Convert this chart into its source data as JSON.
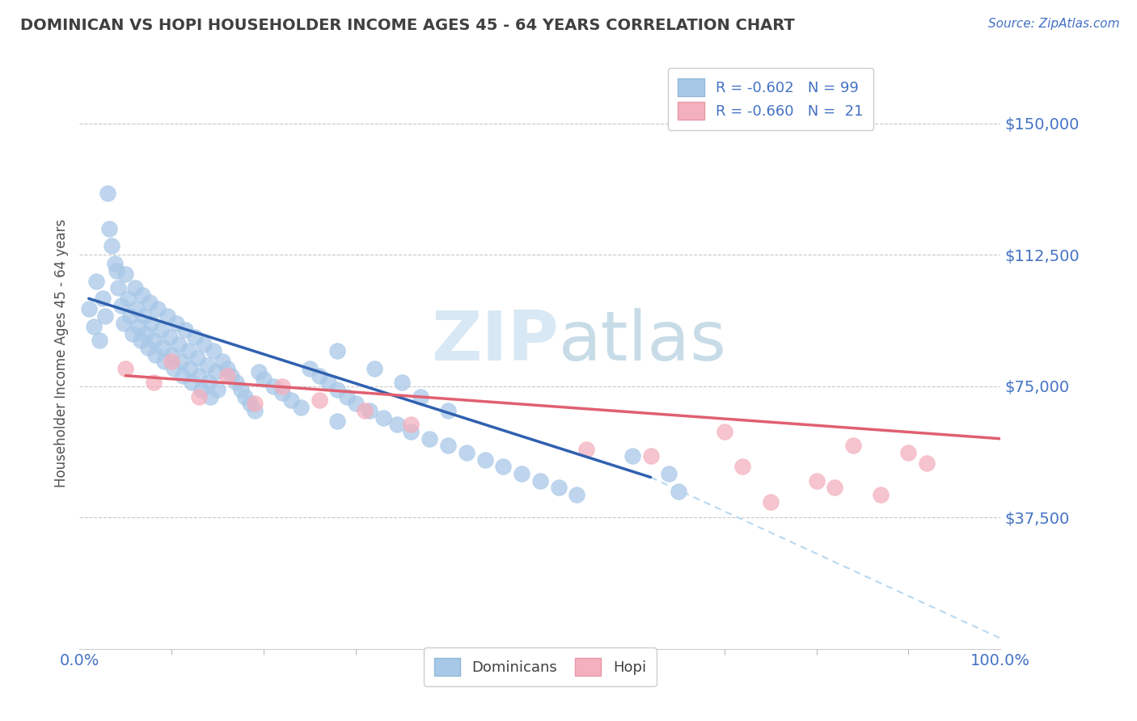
{
  "title": "DOMINICAN VS HOPI HOUSEHOLDER INCOME AGES 45 - 64 YEARS CORRELATION CHART",
  "source": "Source: ZipAtlas.com",
  "ylabel": "Householder Income Ages 45 - 64 years",
  "xlim": [
    0,
    1.0
  ],
  "ylim": [
    0,
    168750
  ],
  "yticks": [
    37500,
    75000,
    112500,
    150000
  ],
  "ytick_labels": [
    "$37,500",
    "$75,000",
    "$112,500",
    "$150,000"
  ],
  "xtick_labels": [
    "0.0%",
    "100.0%"
  ],
  "dominican_color": "#a8c8e8",
  "hopi_color": "#f4b0be",
  "regression_blue": "#3060b0",
  "regression_pink": "#e06070",
  "regression_dash": "#b8d8f0",
  "background_color": "#ffffff",
  "grid_color": "#c8c8c8",
  "title_color": "#404040",
  "axis_label_color": "#505050",
  "tick_label_color": "#4472c4",
  "watermark_color": "#d8e8f4",
  "dominican_x": [
    0.01,
    0.015,
    0.018,
    0.022,
    0.025,
    0.028,
    0.03,
    0.032,
    0.035,
    0.038,
    0.04,
    0.042,
    0.045,
    0.048,
    0.05,
    0.052,
    0.055,
    0.058,
    0.06,
    0.062,
    0.064,
    0.066,
    0.068,
    0.07,
    0.072,
    0.074,
    0.076,
    0.078,
    0.08,
    0.082,
    0.085,
    0.088,
    0.09,
    0.092,
    0.095,
    0.098,
    0.1,
    0.102,
    0.105,
    0.108,
    0.11,
    0.112,
    0.115,
    0.118,
    0.12,
    0.122,
    0.125,
    0.128,
    0.13,
    0.132,
    0.135,
    0.138,
    0.14,
    0.142,
    0.145,
    0.148,
    0.15,
    0.155,
    0.16,
    0.165,
    0.17,
    0.175,
    0.18,
    0.185,
    0.19,
    0.195,
    0.2,
    0.21,
    0.22,
    0.23,
    0.24,
    0.25,
    0.26,
    0.27,
    0.28,
    0.29,
    0.3,
    0.315,
    0.33,
    0.345,
    0.36,
    0.38,
    0.4,
    0.42,
    0.44,
    0.46,
    0.48,
    0.5,
    0.52,
    0.54,
    0.28,
    0.32,
    0.35,
    0.37,
    0.6,
    0.64,
    0.65,
    0.28,
    0.4
  ],
  "dominican_y": [
    97000,
    92000,
    105000,
    88000,
    100000,
    95000,
    130000,
    120000,
    115000,
    110000,
    108000,
    103000,
    98000,
    93000,
    107000,
    100000,
    95000,
    90000,
    103000,
    97000,
    92000,
    88000,
    101000,
    95000,
    90000,
    86000,
    99000,
    93000,
    88000,
    84000,
    97000,
    91000,
    86000,
    82000,
    95000,
    89000,
    84000,
    80000,
    93000,
    87000,
    82000,
    78000,
    91000,
    85000,
    80000,
    76000,
    89000,
    83000,
    78000,
    74000,
    87000,
    81000,
    76000,
    72000,
    85000,
    79000,
    74000,
    82000,
    80000,
    78000,
    76000,
    74000,
    72000,
    70000,
    68000,
    79000,
    77000,
    75000,
    73000,
    71000,
    69000,
    80000,
    78000,
    76000,
    74000,
    72000,
    70000,
    68000,
    66000,
    64000,
    62000,
    60000,
    58000,
    56000,
    54000,
    52000,
    50000,
    48000,
    46000,
    44000,
    85000,
    80000,
    76000,
    72000,
    55000,
    50000,
    45000,
    65000,
    68000
  ],
  "hopi_x": [
    0.05,
    0.08,
    0.1,
    0.13,
    0.16,
    0.19,
    0.22,
    0.26,
    0.31,
    0.36,
    0.55,
    0.62,
    0.72,
    0.8,
    0.84,
    0.87,
    0.9,
    0.92,
    0.7,
    0.75,
    0.82
  ],
  "hopi_y": [
    80000,
    76000,
    82000,
    72000,
    78000,
    70000,
    75000,
    71000,
    68000,
    64000,
    57000,
    55000,
    52000,
    48000,
    58000,
    44000,
    56000,
    53000,
    62000,
    42000,
    46000
  ],
  "dom_line_x0": 0.01,
  "dom_line_x1": 0.62,
  "dom_line_y0": 100000,
  "dom_line_y1": 49000,
  "hopi_line_x0": 0.05,
  "hopi_line_x1": 1.0,
  "hopi_line_y0": 78000,
  "hopi_line_y1": 60000,
  "dash_line_x0": 0.62,
  "dash_line_x1": 1.0,
  "dash_line_y0": 49000,
  "dash_line_y1": 3000
}
